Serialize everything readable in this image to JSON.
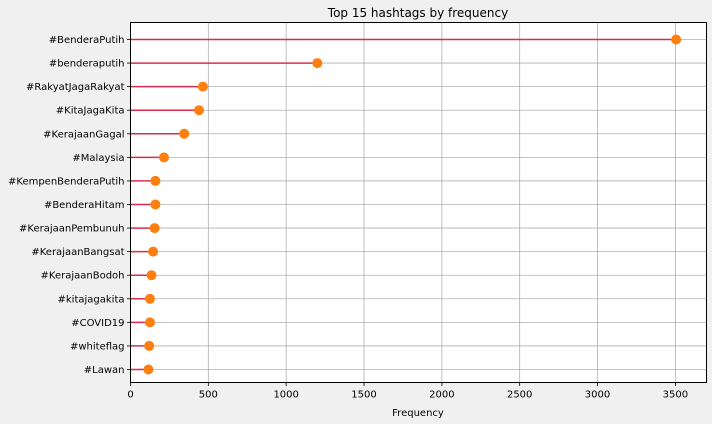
{
  "chart_data": {
    "type": "lollipop",
    "title": "Top 15 hashtags by frequency",
    "xlabel": "Frequency",
    "ylabel": "",
    "xlim": [
      0,
      3700
    ],
    "xticks": [
      0,
      500,
      1000,
      1500,
      2000,
      2500,
      3000,
      3500
    ],
    "grid": true,
    "categories": [
      "#BenderaPutih",
      "#benderaputih",
      "#RakyatJagaRakyat",
      "#KitaJagaKita",
      "#KerajaanGagal",
      "#Malaysia",
      "#KempenBenderaPutih",
      "#BenderaHitam",
      "#KerajaanPembunuh",
      "#KerajaanBangsat",
      "#KerajaanBodoh",
      "#kitajagakita",
      "#COVID19",
      "#whiteflag",
      "#Lawan"
    ],
    "values": [
      3505,
      1200,
      465,
      440,
      345,
      215,
      160,
      160,
      155,
      145,
      135,
      125,
      125,
      120,
      115
    ],
    "colors": {
      "stem": "#d62d4e",
      "marker": "#ff7f0e",
      "grid": "#b0b0b0",
      "plot_bg": "#ffffff",
      "figure_bg": "#f0f0f0"
    }
  }
}
